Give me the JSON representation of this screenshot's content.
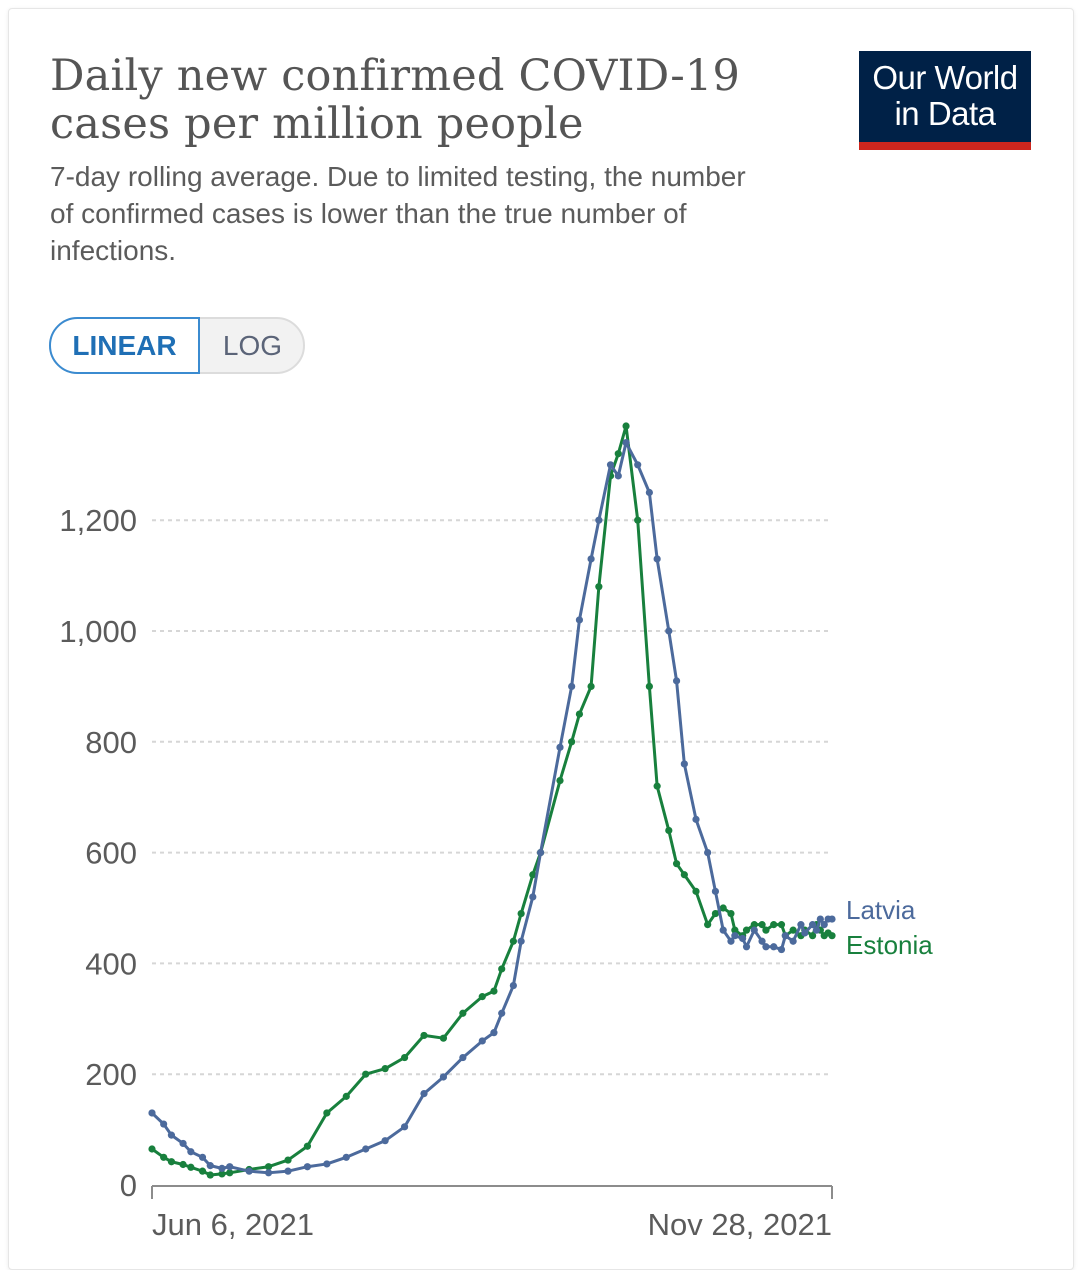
{
  "title": "Daily new confirmed COVID-19 cases per million people",
  "subtitle": "7-day rolling average. Due to limited testing, the number of confirmed cases is lower than the true number of infections.",
  "logo": {
    "line1": "Our World",
    "line2": "in Data",
    "bg": "#002147",
    "accent": "#ce261e"
  },
  "toggle": {
    "linear_label": "LINEAR",
    "log_label": "LOG",
    "selected": "LINEAR"
  },
  "chart_data": {
    "type": "line",
    "title": "Daily new confirmed COVID-19 cases per million people",
    "xlabel": "",
    "ylabel": "",
    "ylim": [
      0,
      1400
    ],
    "y_ticks": [
      0,
      200,
      400,
      600,
      800,
      1000,
      1200
    ],
    "y_tick_labels": [
      "0",
      "200",
      "400",
      "600",
      "800",
      "1,000",
      "1,200"
    ],
    "x_range_days": [
      0,
      175
    ],
    "x_tick_labels": [
      "Jun 6, 2021",
      "Nov 28, 2021"
    ],
    "grid": true,
    "series": [
      {
        "name": "Latvia",
        "color": "#4c6a9c",
        "x": [
          0,
          3,
          5,
          8,
          10,
          13,
          15,
          18,
          20,
          25,
          30,
          35,
          40,
          45,
          50,
          55,
          60,
          65,
          70,
          75,
          80,
          85,
          88,
          90,
          93,
          95,
          98,
          100,
          105,
          108,
          110,
          113,
          115,
          118,
          120,
          122,
          125,
          128,
          130,
          133,
          135,
          137,
          140,
          143,
          145,
          147,
          149,
          150,
          152,
          153,
          155,
          157,
          158,
          160,
          162,
          163,
          165,
          167,
          168,
          170,
          171,
          172,
          173,
          174,
          175
        ],
        "values": [
          130,
          110,
          90,
          75,
          60,
          50,
          35,
          30,
          33,
          25,
          22,
          25,
          33,
          38,
          50,
          65,
          80,
          105,
          165,
          195,
          230,
          260,
          275,
          310,
          360,
          440,
          520,
          600,
          790,
          900,
          1020,
          1130,
          1200,
          1300,
          1280,
          1340,
          1300,
          1250,
          1130,
          1000,
          910,
          760,
          660,
          600,
          530,
          460,
          440,
          450,
          445,
          430,
          460,
          440,
          430,
          430,
          425,
          450,
          440,
          470,
          455,
          470,
          460,
          480,
          470,
          480,
          480
        ]
      },
      {
        "name": "Estonia",
        "color": "#18803d",
        "x": [
          0,
          3,
          5,
          8,
          10,
          13,
          15,
          18,
          20,
          25,
          30,
          35,
          40,
          45,
          50,
          55,
          60,
          65,
          70,
          75,
          80,
          85,
          88,
          90,
          93,
          95,
          98,
          100,
          105,
          108,
          110,
          113,
          115,
          118,
          120,
          122,
          125,
          128,
          130,
          133,
          135,
          137,
          140,
          143,
          145,
          147,
          149,
          150,
          152,
          153,
          155,
          157,
          158,
          160,
          162,
          163,
          165,
          167,
          168,
          170,
          171,
          172,
          173,
          174,
          175
        ],
        "values": [
          65,
          50,
          42,
          37,
          32,
          25,
          18,
          20,
          22,
          28,
          33,
          45,
          70,
          130,
          160,
          200,
          210,
          230,
          270,
          265,
          310,
          340,
          350,
          390,
          440,
          490,
          560,
          600,
          730,
          800,
          850,
          900,
          1080,
          1280,
          1320,
          1370,
          1200,
          900,
          720,
          640,
          580,
          560,
          530,
          470,
          490,
          500,
          490,
          460,
          450,
          460,
          470,
          470,
          460,
          470,
          470,
          450,
          460,
          450,
          460,
          450,
          470,
          460,
          450,
          455,
          450
        ]
      }
    ]
  }
}
